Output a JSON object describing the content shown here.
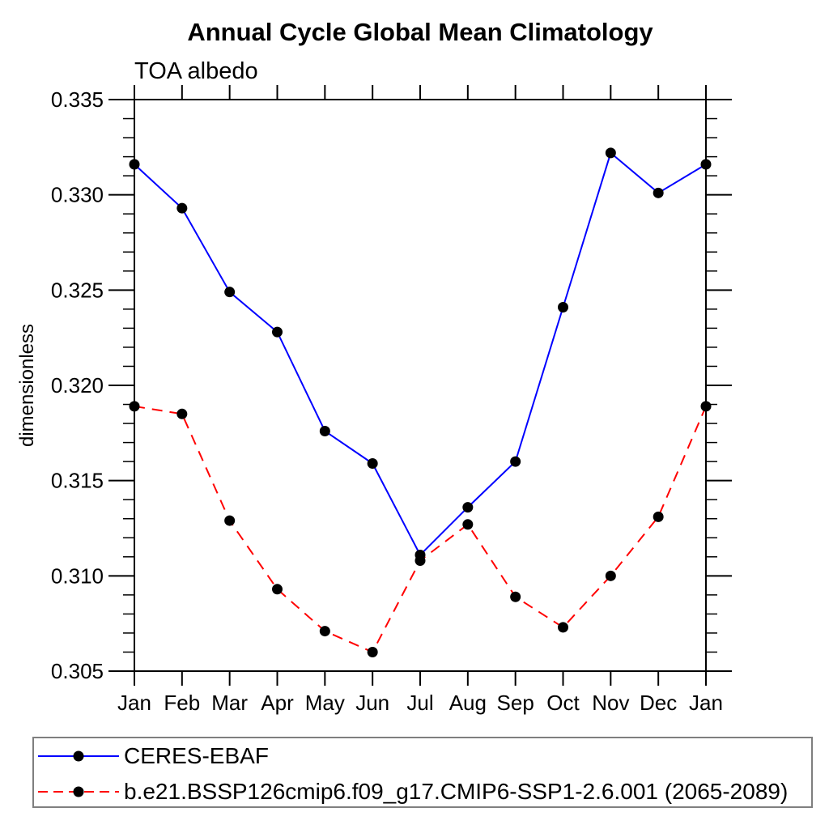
{
  "title": "Annual Cycle Global Mean Climatology",
  "subtitle": "TOA albedo",
  "chart_data": {
    "type": "line",
    "title": "Annual Cycle Global Mean Climatology",
    "subtitle": "TOA albedo",
    "xlabel": "",
    "ylabel": "dimensionless",
    "categories": [
      "Jan",
      "Feb",
      "Mar",
      "Apr",
      "May",
      "Jun",
      "Jul",
      "Aug",
      "Sep",
      "Oct",
      "Nov",
      "Dec",
      "Jan"
    ],
    "ylim": [
      0.305,
      0.335
    ],
    "ytick_major_step": 0.005,
    "ytick_minor_step": 0.001,
    "ytick_labels": [
      "0.305",
      "0.310",
      "0.315",
      "0.320",
      "0.325",
      "0.330",
      "0.335"
    ],
    "grid": false,
    "legend_position": "bottom",
    "frame_color": "#000000",
    "series": [
      {
        "name": "CERES-EBAF",
        "color": "#0000ff",
        "style": "solid",
        "marker": "filled-circle",
        "marker_color": "#000000",
        "values": [
          0.3316,
          0.3293,
          0.3249,
          0.3228,
          0.3176,
          0.3159,
          0.3111,
          0.3136,
          0.316,
          0.3241,
          0.3322,
          0.3301,
          0.3316
        ]
      },
      {
        "name": "b.e21.BSSP126cmip6.f09_g17.CMIP6-SSP1-2.6.001 (2065-2089)",
        "color": "#ff0000",
        "style": "dashed",
        "marker": "filled-circle",
        "marker_color": "#000000",
        "values": [
          0.3189,
          0.3185,
          0.3129,
          0.3093,
          0.3071,
          0.306,
          0.3108,
          0.3127,
          0.3089,
          0.3073,
          0.31,
          0.3131,
          0.3189
        ]
      }
    ]
  }
}
